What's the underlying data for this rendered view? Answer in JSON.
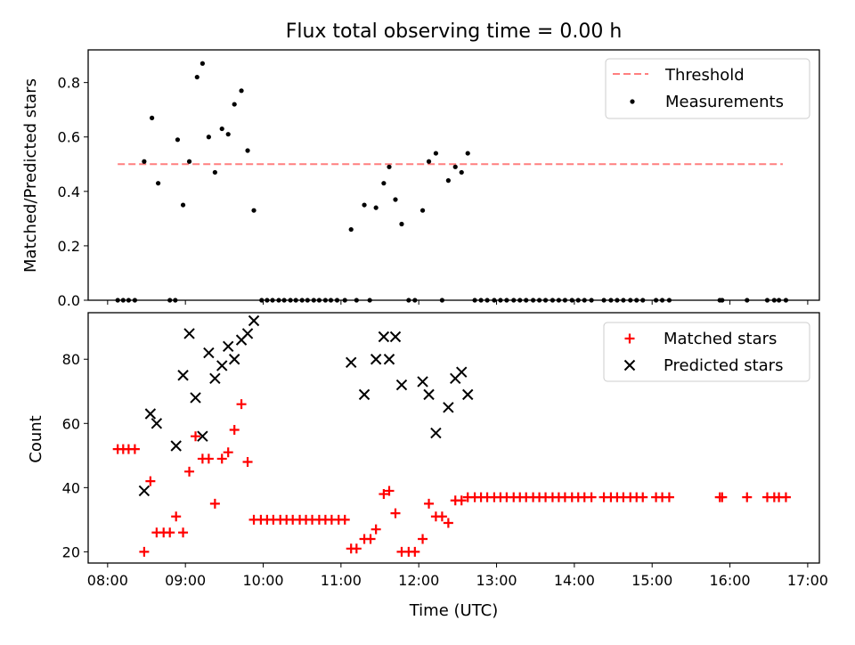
{
  "chart_data": [
    {
      "type": "scatter",
      "title": "Flux total observing time = 0.00 h",
      "ylabel": "Matched/Predicted stars",
      "xlabel": "",
      "ylim": [
        0,
        0.92
      ],
      "yticks": [
        0.0,
        0.2,
        0.4,
        0.6,
        0.8
      ],
      "ytick_labels": [
        "0.0",
        "0.2",
        "0.4",
        "0.6",
        "0.8"
      ],
      "xlim": [
        7.75,
        17.15
      ],
      "xticks": [
        8,
        9,
        10,
        11,
        12,
        13,
        14,
        15,
        16,
        17
      ],
      "legend": {
        "placement": "top-right",
        "entries": [
          "Threshold",
          "Measurements"
        ]
      },
      "threshold": {
        "name": "Threshold",
        "x": [
          8.13,
          16.68
        ],
        "y": 0.5,
        "color": "#ff7f7f",
        "style": "dashed"
      },
      "series": [
        {
          "name": "Measurements",
          "color": "#000000",
          "points": [
            [
              8.13,
              0.0
            ],
            [
              8.2,
              0.0
            ],
            [
              8.27,
              0.0
            ],
            [
              8.35,
              0.0
            ],
            [
              8.47,
              0.51
            ],
            [
              8.57,
              0.67
            ],
            [
              8.65,
              0.43
            ],
            [
              8.8,
              0.0
            ],
            [
              8.87,
              0.0
            ],
            [
              8.9,
              0.59
            ],
            [
              8.97,
              0.35
            ],
            [
              9.05,
              0.51
            ],
            [
              9.15,
              0.82
            ],
            [
              9.22,
              0.87
            ],
            [
              9.3,
              0.6
            ],
            [
              9.38,
              0.47
            ],
            [
              9.47,
              0.63
            ],
            [
              9.55,
              0.61
            ],
            [
              9.63,
              0.72
            ],
            [
              9.72,
              0.77
            ],
            [
              9.8,
              0.55
            ],
            [
              9.88,
              0.33
            ],
            [
              9.98,
              0.0
            ],
            [
              10.05,
              0.0
            ],
            [
              10.12,
              0.0
            ],
            [
              10.2,
              0.0
            ],
            [
              10.27,
              0.0
            ],
            [
              10.35,
              0.0
            ],
            [
              10.42,
              0.0
            ],
            [
              10.5,
              0.0
            ],
            [
              10.57,
              0.0
            ],
            [
              10.65,
              0.0
            ],
            [
              10.72,
              0.0
            ],
            [
              10.8,
              0.0
            ],
            [
              10.87,
              0.0
            ],
            [
              10.95,
              0.0
            ],
            [
              11.05,
              0.0
            ],
            [
              11.13,
              0.26
            ],
            [
              11.2,
              0.0
            ],
            [
              11.3,
              0.35
            ],
            [
              11.37,
              0.0
            ],
            [
              11.45,
              0.34
            ],
            [
              11.55,
              0.43
            ],
            [
              11.62,
              0.49
            ],
            [
              11.7,
              0.37
            ],
            [
              11.78,
              0.28
            ],
            [
              11.87,
              0.0
            ],
            [
              11.95,
              0.0
            ],
            [
              12.05,
              0.33
            ],
            [
              12.13,
              0.51
            ],
            [
              12.22,
              0.54
            ],
            [
              12.3,
              0.0
            ],
            [
              12.38,
              0.44
            ],
            [
              12.47,
              0.49
            ],
            [
              12.55,
              0.47
            ],
            [
              12.63,
              0.54
            ],
            [
              12.72,
              0.0
            ],
            [
              12.8,
              0.0
            ],
            [
              12.88,
              0.0
            ],
            [
              12.97,
              0.0
            ],
            [
              13.05,
              0.0
            ],
            [
              13.13,
              0.0
            ],
            [
              13.22,
              0.0
            ],
            [
              13.3,
              0.0
            ],
            [
              13.38,
              0.0
            ],
            [
              13.47,
              0.0
            ],
            [
              13.55,
              0.0
            ],
            [
              13.63,
              0.0
            ],
            [
              13.72,
              0.0
            ],
            [
              13.8,
              0.0
            ],
            [
              13.88,
              0.0
            ],
            [
              13.97,
              0.0
            ],
            [
              14.05,
              0.0
            ],
            [
              14.13,
              0.0
            ],
            [
              14.22,
              0.0
            ],
            [
              14.38,
              0.0
            ],
            [
              14.47,
              0.0
            ],
            [
              14.55,
              0.0
            ],
            [
              14.63,
              0.0
            ],
            [
              14.72,
              0.0
            ],
            [
              14.8,
              0.0
            ],
            [
              14.88,
              0.0
            ],
            [
              15.05,
              0.0
            ],
            [
              15.13,
              0.0
            ],
            [
              15.22,
              0.0
            ],
            [
              15.87,
              0.0
            ],
            [
              15.9,
              0.0
            ],
            [
              16.22,
              0.0
            ],
            [
              16.48,
              0.0
            ],
            [
              16.57,
              0.0
            ],
            [
              16.63,
              0.0
            ],
            [
              16.72,
              0.0
            ]
          ]
        }
      ]
    },
    {
      "type": "scatter",
      "title": "",
      "ylabel": "Count",
      "xlabel": "Time (UTC)",
      "ylim": [
        16.5,
        94.5
      ],
      "yticks": [
        20,
        40,
        60,
        80
      ],
      "ytick_labels": [
        "20",
        "40",
        "60",
        "80"
      ],
      "xlim": [
        7.75,
        17.15
      ],
      "xticks": [
        8,
        9,
        10,
        11,
        12,
        13,
        14,
        15,
        16,
        17
      ],
      "xtick_labels": [
        "08:00",
        "09:00",
        "10:00",
        "11:00",
        "12:00",
        "13:00",
        "14:00",
        "15:00",
        "16:00",
        "17:00"
      ],
      "legend": {
        "placement": "top-right",
        "entries": [
          "Matched stars",
          "Predicted stars"
        ]
      },
      "series": [
        {
          "name": "Matched stars",
          "marker": "+",
          "color": "#ff0000",
          "points": [
            [
              8.13,
              52
            ],
            [
              8.2,
              52
            ],
            [
              8.27,
              52
            ],
            [
              8.35,
              52
            ],
            [
              8.47,
              20
            ],
            [
              8.55,
              42
            ],
            [
              8.63,
              26
            ],
            [
              8.72,
              26
            ],
            [
              8.8,
              26
            ],
            [
              8.88,
              31
            ],
            [
              8.97,
              26
            ],
            [
              9.05,
              45
            ],
            [
              9.13,
              56
            ],
            [
              9.22,
              49
            ],
            [
              9.3,
              49
            ],
            [
              9.38,
              35
            ],
            [
              9.47,
              49
            ],
            [
              9.55,
              51
            ],
            [
              9.63,
              58
            ],
            [
              9.72,
              66
            ],
            [
              9.8,
              48
            ],
            [
              9.88,
              30
            ],
            [
              9.97,
              30
            ],
            [
              10.05,
              30
            ],
            [
              10.13,
              30
            ],
            [
              10.22,
              30
            ],
            [
              10.3,
              30
            ],
            [
              10.38,
              30
            ],
            [
              10.47,
              30
            ],
            [
              10.55,
              30
            ],
            [
              10.63,
              30
            ],
            [
              10.72,
              30
            ],
            [
              10.8,
              30
            ],
            [
              10.88,
              30
            ],
            [
              10.97,
              30
            ],
            [
              11.05,
              30
            ],
            [
              11.13,
              21
            ],
            [
              11.2,
              21
            ],
            [
              11.3,
              24
            ],
            [
              11.38,
              24
            ],
            [
              11.45,
              27
            ],
            [
              11.55,
              38
            ],
            [
              11.62,
              39
            ],
            [
              11.7,
              32
            ],
            [
              11.78,
              20
            ],
            [
              11.87,
              20
            ],
            [
              11.95,
              20
            ],
            [
              12.05,
              24
            ],
            [
              12.13,
              35
            ],
            [
              12.22,
              31
            ],
            [
              12.3,
              31
            ],
            [
              12.38,
              29
            ],
            [
              12.47,
              36
            ],
            [
              12.55,
              36
            ],
            [
              12.63,
              37
            ],
            [
              12.72,
              37
            ],
            [
              12.8,
              37
            ],
            [
              12.88,
              37
            ],
            [
              12.97,
              37
            ],
            [
              13.05,
              37
            ],
            [
              13.13,
              37
            ],
            [
              13.22,
              37
            ],
            [
              13.3,
              37
            ],
            [
              13.38,
              37
            ],
            [
              13.47,
              37
            ],
            [
              13.55,
              37
            ],
            [
              13.63,
              37
            ],
            [
              13.72,
              37
            ],
            [
              13.8,
              37
            ],
            [
              13.88,
              37
            ],
            [
              13.97,
              37
            ],
            [
              14.05,
              37
            ],
            [
              14.13,
              37
            ],
            [
              14.22,
              37
            ],
            [
              14.38,
              37
            ],
            [
              14.47,
              37
            ],
            [
              14.55,
              37
            ],
            [
              14.63,
              37
            ],
            [
              14.72,
              37
            ],
            [
              14.8,
              37
            ],
            [
              14.88,
              37
            ],
            [
              15.05,
              37
            ],
            [
              15.13,
              37
            ],
            [
              15.22,
              37
            ],
            [
              15.87,
              37
            ],
            [
              15.9,
              37
            ],
            [
              16.22,
              37
            ],
            [
              16.48,
              37
            ],
            [
              16.57,
              37
            ],
            [
              16.63,
              37
            ],
            [
              16.72,
              37
            ]
          ]
        },
        {
          "name": "Predicted stars",
          "marker": "x",
          "color": "#000000",
          "points": [
            [
              8.47,
              39
            ],
            [
              8.55,
              63
            ],
            [
              8.63,
              60
            ],
            [
              8.88,
              53
            ],
            [
              8.97,
              75
            ],
            [
              9.05,
              88
            ],
            [
              9.13,
              68
            ],
            [
              9.22,
              56
            ],
            [
              9.3,
              82
            ],
            [
              9.38,
              74
            ],
            [
              9.47,
              78
            ],
            [
              9.55,
              84
            ],
            [
              9.63,
              80
            ],
            [
              9.72,
              86
            ],
            [
              9.8,
              88
            ],
            [
              9.88,
              92
            ],
            [
              11.13,
              79
            ],
            [
              11.3,
              69
            ],
            [
              11.45,
              80
            ],
            [
              11.55,
              87
            ],
            [
              11.62,
              80
            ],
            [
              11.7,
              87
            ],
            [
              11.78,
              72
            ],
            [
              12.05,
              73
            ],
            [
              12.13,
              69
            ],
            [
              12.22,
              57
            ],
            [
              12.38,
              65
            ],
            [
              12.47,
              74
            ],
            [
              12.55,
              76
            ],
            [
              12.63,
              69
            ]
          ]
        }
      ]
    }
  ]
}
